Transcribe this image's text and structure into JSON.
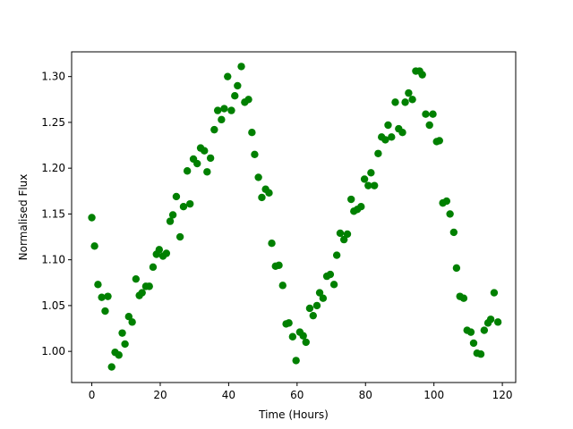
{
  "chart_data": {
    "type": "scatter",
    "x_label": "Time (Hours)",
    "y_label": "Normalised Flux",
    "color": "#008000",
    "grid": false,
    "xlim": [
      -5.9,
      123.9
    ],
    "ylim": [
      0.966,
      1.327
    ],
    "xticks": [
      0,
      20,
      40,
      60,
      80,
      100,
      120
    ],
    "yticks": [
      {
        "value": 1.0,
        "label": "1.00"
      },
      {
        "value": 1.05,
        "label": "1.05"
      },
      {
        "value": 1.1,
        "label": "1.10"
      },
      {
        "value": 1.15,
        "label": "1.15"
      },
      {
        "value": 1.2,
        "label": "1.20"
      },
      {
        "value": 1.25,
        "label": "1.25"
      },
      {
        "value": 1.3,
        "label": "1.30"
      }
    ],
    "x": [
      0,
      0.8,
      1.8,
      2.9,
      3.9,
      4.7,
      5.8,
      6.8,
      7.9,
      8.9,
      9.7,
      10.8,
      11.8,
      12.9,
      13.9,
      14.7,
      15.8,
      16.8,
      17.9,
      18.9,
      19.7,
      20.8,
      21.8,
      22.9,
      23.7,
      24.7,
      25.8,
      26.8,
      27.9,
      28.7,
      29.7,
      30.8,
      31.8,
      32.9,
      33.7,
      34.7,
      35.8,
      36.8,
      37.9,
      38.7,
      39.7,
      40.8,
      41.8,
      42.6,
      43.7,
      44.7,
      45.8,
      46.8,
      47.6,
      48.7,
      49.7,
      50.8,
      51.8,
      52.6,
      53.7,
      54.7,
      55.8,
      56.8,
      57.6,
      58.7,
      59.7,
      60.8,
      61.8,
      62.6,
      63.7,
      64.7,
      65.8,
      66.6,
      67.6,
      68.7,
      69.7,
      70.8,
      71.6,
      72.6,
      73.7,
      74.7,
      75.8,
      76.6,
      77.6,
      78.7,
      79.7,
      80.8,
      81.6,
      82.6,
      83.7,
      84.7,
      85.8,
      86.6,
      87.6,
      88.7,
      89.7,
      90.8,
      91.6,
      92.6,
      93.7,
      94.7,
      95.8,
      96.6,
      97.6,
      98.7,
      99.7,
      100.8,
      101.6,
      102.6,
      103.7,
      104.7,
      105.8,
      106.6,
      107.6,
      108.7,
      109.7,
      110.8,
      111.6,
      112.6,
      113.7,
      114.7,
      115.8,
      116.6,
      117.6,
      118.7
    ],
    "values": [
      1.146,
      1.115,
      1.073,
      1.059,
      1.044,
      1.06,
      0.983,
      0.999,
      0.996,
      1.02,
      1.008,
      1.038,
      1.032,
      1.079,
      1.061,
      1.064,
      1.071,
      1.071,
      1.092,
      1.106,
      1.111,
      1.104,
      1.107,
      1.142,
      1.149,
      1.169,
      1.125,
      1.158,
      1.197,
      1.161,
      1.21,
      1.205,
      1.222,
      1.219,
      1.196,
      1.211,
      1.242,
      1.263,
      1.253,
      1.265,
      1.3,
      1.263,
      1.279,
      1.29,
      1.311,
      1.272,
      1.275,
      1.239,
      1.215,
      1.19,
      1.168,
      1.177,
      1.173,
      1.118,
      1.093,
      1.094,
      1.072,
      1.03,
      1.031,
      1.016,
      0.99,
      1.021,
      1.017,
      1.01,
      1.047,
      1.039,
      1.05,
      1.064,
      1.058,
      1.082,
      1.084,
      1.073,
      1.105,
      1.129,
      1.122,
      1.128,
      1.166,
      1.153,
      1.155,
      1.158,
      1.188,
      1.181,
      1.195,
      1.181,
      1.216,
      1.234,
      1.231,
      1.247,
      1.234,
      1.272,
      1.243,
      1.239,
      1.272,
      1.282,
      1.275,
      1.306,
      1.306,
      1.302,
      1.259,
      1.247,
      1.259,
      1.229,
      1.23,
      1.162,
      1.164,
      1.15,
      1.13,
      1.091,
      1.06,
      1.058,
      1.023,
      1.021,
      1.009,
      0.998,
      0.997,
      1.023,
      1.031,
      1.035,
      1.064,
      1.032
    ]
  }
}
